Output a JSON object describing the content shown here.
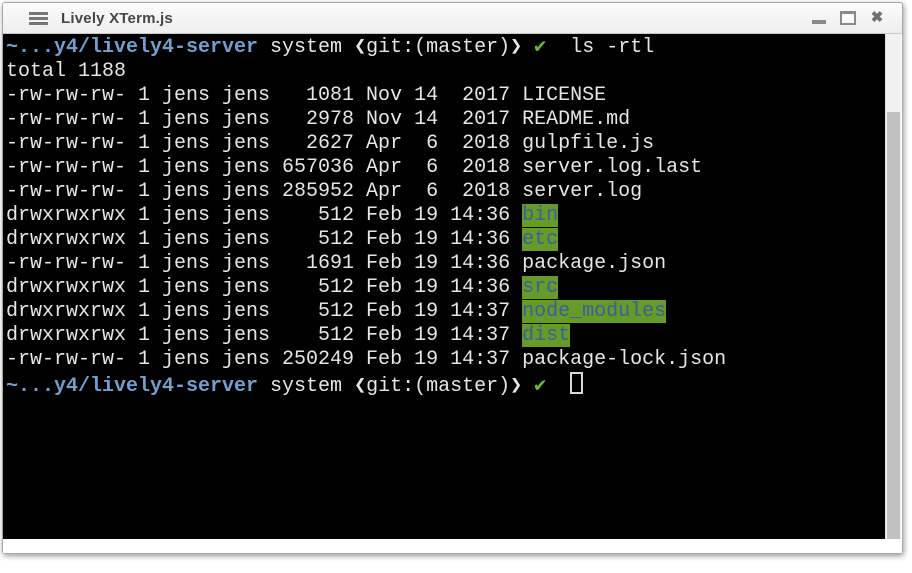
{
  "window": {
    "title": "Lively XTerm.js",
    "menu_icon": "hamburger-menu",
    "close_glyph": "✖"
  },
  "colors": {
    "terminal_background": "#000000",
    "terminal_foreground": "#e6e6e6",
    "prompt_path_blue": "#729fcf",
    "check_green": "#66bf2e",
    "directory_background_green": "#669b28",
    "directory_foreground_blue": "#3a5f9e",
    "titlebar_background": "#f5f5f5"
  },
  "terminal": {
    "prompt_path": "~...y4/lively4-server",
    "prompt_context": "system ❮git:(master)❯",
    "command": "ls -rtl",
    "lines": [
      [
        {
          "t": "~...y4/lively4-server",
          "c": "path"
        },
        {
          "t": " system ❮git:(master)❯ "
        },
        {
          "t": "✔",
          "c": "check"
        },
        {
          "t": "  ls -rtl"
        }
      ],
      [
        {
          "t": "total 1188"
        }
      ],
      [
        {
          "t": "-rw-rw-rw- 1 jens jens   1081 Nov 14  2017 LICENSE"
        }
      ],
      [
        {
          "t": "-rw-rw-rw- 1 jens jens   2978 Nov 14  2017 README.md"
        }
      ],
      [
        {
          "t": "-rw-rw-rw- 1 jens jens   2627 Apr  6  2018 gulpfile.js"
        }
      ],
      [
        {
          "t": "-rw-rw-rw- 1 jens jens 657036 Apr  6  2018 server.log.last"
        }
      ],
      [
        {
          "t": "-rw-rw-rw- 1 jens jens 285952 Apr  6  2018 server.log"
        }
      ],
      [
        {
          "t": "drwxrwxrwx 1 jens jens    512 Feb 19 14:36 "
        },
        {
          "t": "bin",
          "c": "dir"
        }
      ],
      [
        {
          "t": "drwxrwxrwx 1 jens jens    512 Feb 19 14:36 "
        },
        {
          "t": "etc",
          "c": "dir"
        }
      ],
      [
        {
          "t": "-rw-rw-rw- 1 jens jens   1691 Feb 19 14:36 package.json"
        }
      ],
      [
        {
          "t": "drwxrwxrwx 1 jens jens    512 Feb 19 14:36 "
        },
        {
          "t": "src",
          "c": "dir"
        }
      ],
      [
        {
          "t": "drwxrwxrwx 1 jens jens    512 Feb 19 14:37 "
        },
        {
          "t": "node_modules",
          "c": "dir"
        }
      ],
      [
        {
          "t": "drwxrwxrwx 1 jens jens    512 Feb 19 14:37 "
        },
        {
          "t": "dist",
          "c": "dir"
        }
      ],
      [
        {
          "t": "-rw-rw-rw- 1 jens jens 250249 Feb 19 14:37 package-lock.json"
        }
      ],
      [
        {
          "t": "~...y4/lively4-server",
          "c": "path"
        },
        {
          "t": " system ❮git:(master)❯ "
        },
        {
          "t": "✔",
          "c": "check"
        },
        {
          "t": "  "
        },
        {
          "cursor": true
        }
      ]
    ]
  }
}
